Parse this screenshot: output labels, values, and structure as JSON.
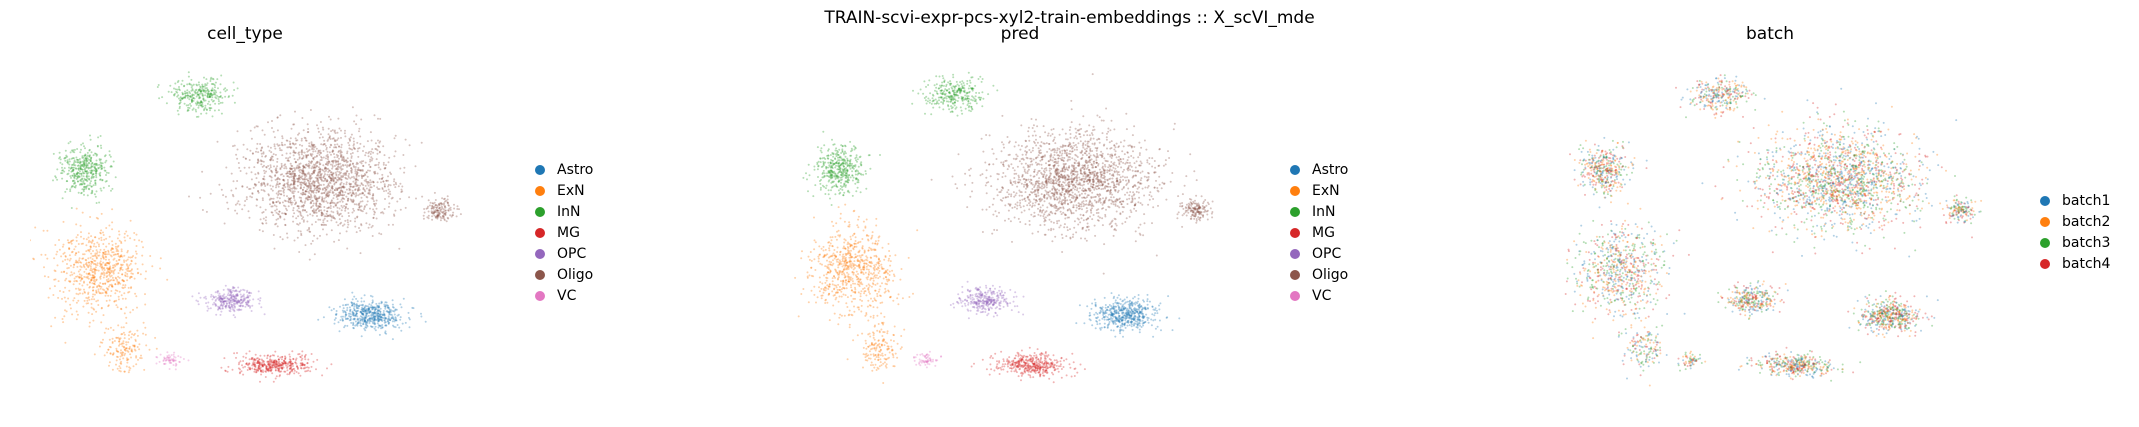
{
  "suptitle": "TRAIN-scvi-expr-pcs-xyl2-train-embeddings :: X_scVI_mde",
  "chart_data": [
    {
      "type": "scatter",
      "title": "cell_type",
      "legend_position": "right",
      "grid": false,
      "axes_visible": false,
      "legend": [
        {
          "label": "Astro",
          "color": "#1f77b4"
        },
        {
          "label": "ExN",
          "color": "#ff7f0e"
        },
        {
          "label": "InN",
          "color": "#2ca02c"
        },
        {
          "label": "MG",
          "color": "#d62728"
        },
        {
          "label": "OPC",
          "color": "#9467bd"
        },
        {
          "label": "Oligo",
          "color": "#8c564b"
        },
        {
          "label": "VC",
          "color": "#e377c2"
        }
      ]
    },
    {
      "type": "scatter",
      "title": "pred",
      "legend_position": "right",
      "grid": false,
      "axes_visible": false,
      "legend": [
        {
          "label": "Astro",
          "color": "#1f77b4"
        },
        {
          "label": "ExN",
          "color": "#ff7f0e"
        },
        {
          "label": "InN",
          "color": "#2ca02c"
        },
        {
          "label": "MG",
          "color": "#d62728"
        },
        {
          "label": "OPC",
          "color": "#9467bd"
        },
        {
          "label": "Oligo",
          "color": "#8c564b"
        },
        {
          "label": "VC",
          "color": "#e377c2"
        }
      ]
    },
    {
      "type": "scatter",
      "title": "batch",
      "legend_position": "right",
      "grid": false,
      "axes_visible": false,
      "legend": [
        {
          "label": "batch1",
          "color": "#1f77b4"
        },
        {
          "label": "batch2",
          "color": "#ff7f0e"
        },
        {
          "label": "batch3",
          "color": "#2ca02c"
        },
        {
          "label": "batch4",
          "color": "#d62728"
        }
      ]
    }
  ]
}
